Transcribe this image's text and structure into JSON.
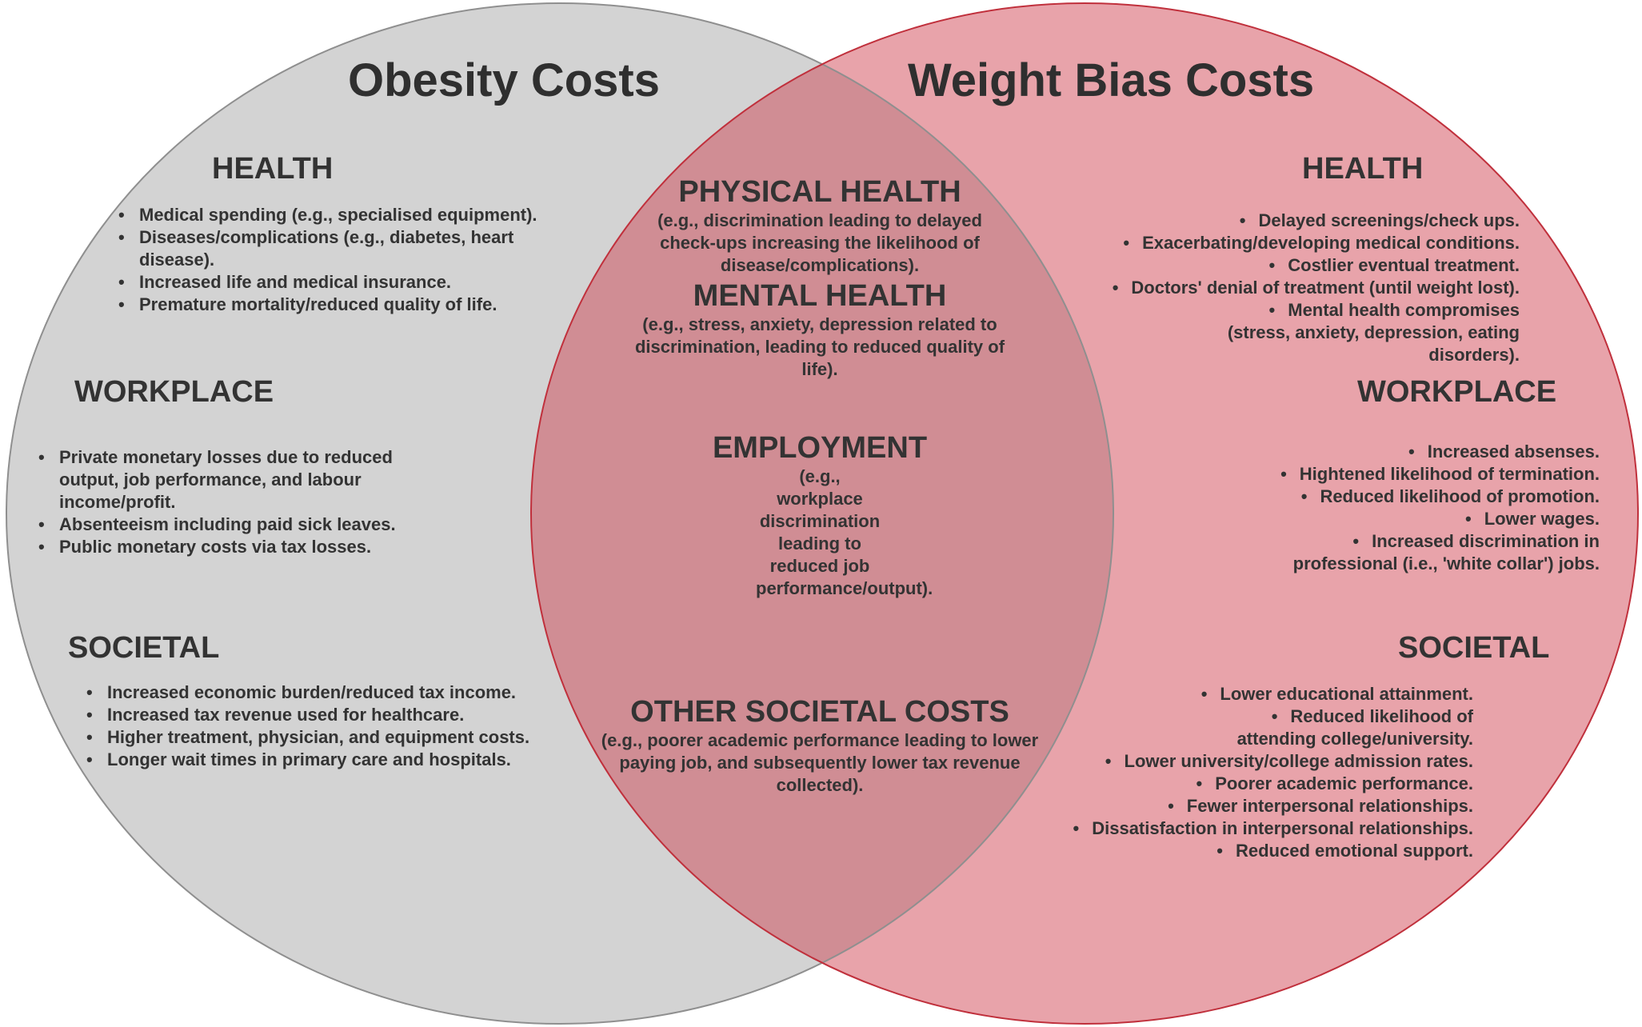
{
  "colors": {
    "left_circle_fill": "#d3d3d3",
    "left_circle_stroke": "#8f8f8f",
    "right_circle_fill": "#e8a3aa",
    "right_circle_stroke": "#c0303c",
    "overlap_fill": "#d08d94",
    "text": "#333333"
  },
  "left": {
    "title": "Obesity Costs",
    "health": {
      "heading": "HEALTH",
      "items": [
        "Medical spending  (e.g., specialised equipment).",
        "Diseases/complications (e.g., diabetes, heart disease).",
        "Increased life and medical insurance.",
        "Premature mortality/reduced quality of life."
      ]
    },
    "workplace": {
      "heading": "WORKPLACE",
      "items": [
        "Private monetary losses due to reduced output, job performance, and labour income/profit.",
        "Absenteeism including paid sick leaves.",
        "Public monetary costs via tax losses."
      ]
    },
    "societal": {
      "heading": "SOCIETAL",
      "items": [
        "Increased economic burden/reduced tax income.",
        "Increased tax revenue used for healthcare.",
        "Higher treatment, physician, and equipment costs.",
        "Longer wait times in primary care and hospitals."
      ]
    }
  },
  "right": {
    "title": "Weight Bias Costs",
    "health": {
      "heading": "HEALTH",
      "items": [
        "Delayed screenings/check ups.",
        "Exacerbating/developing medical conditions.",
        "Costlier eventual treatment.",
        "Doctors' denial of treatment (until weight lost).",
        "Mental health compromises (stress, anxiety, depression, eating disorders)."
      ]
    },
    "workplace": {
      "heading": "WORKPLACE",
      "items": [
        "Increased absenses.",
        "Hightened likelihood of termination.",
        "Reduced likelihood of promotion.",
        "Lower wages.",
        "Increased discrimination in professional (i.e., 'white collar') jobs."
      ]
    },
    "societal": {
      "heading": "SOCIETAL",
      "items": [
        "Lower educational attainment.",
        "Reduced likelihood of attending college/university.",
        "Lower university/college admission rates.",
        "Poorer academic performance.",
        "Fewer interpersonal relationships.",
        "Dissatisfaction in interpersonal relationships.",
        "Reduced emotional support."
      ]
    }
  },
  "overlap": {
    "physical_health": {
      "heading": "PHYSICAL HEALTH",
      "description": "(e.g., discrimination leading to delayed check-ups increasing the likelihood of disease/complications)."
    },
    "mental_health": {
      "heading": "MENTAL HEALTH",
      "description": "(e.g., stress, anxiety, depression related to discrimination, leading to reduced quality of life)."
    },
    "employment": {
      "heading": "EMPLOYMENT",
      "description": "(e.g., workplace discrimination leading to reduced job performance/output)."
    },
    "other_societal": {
      "heading": "OTHER SOCIETAL COSTS",
      "description": "(e.g., poorer academic performance leading to lower paying job, and subsequently lower tax revenue collected)."
    }
  }
}
